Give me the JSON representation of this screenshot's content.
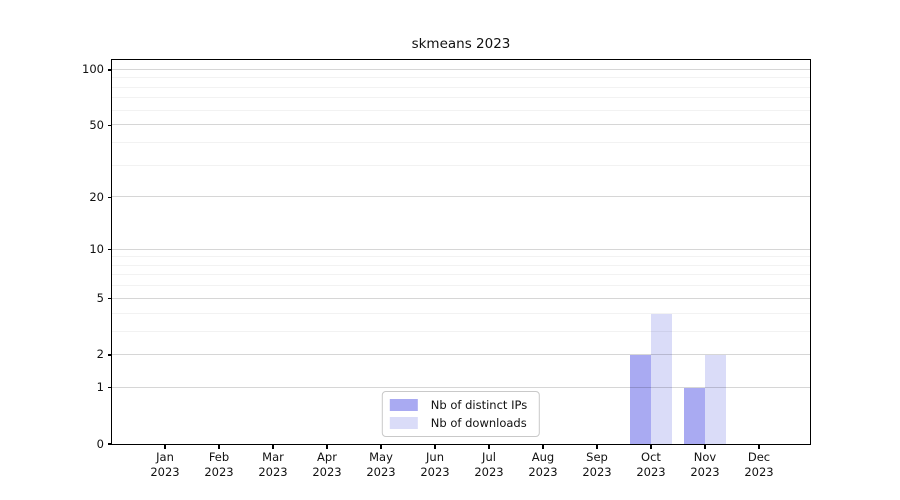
{
  "title": "skmeans 2023",
  "chart_data": {
    "type": "bar",
    "title": "skmeans 2023",
    "xlabel": "",
    "ylabel": "",
    "y_scale": "log1p",
    "ylim": [
      0,
      113
    ],
    "grid": "horizontal",
    "legend_position": "lower center",
    "x_categories": [
      "Jan 2023",
      "Feb 2023",
      "Mar 2023",
      "Apr 2023",
      "May 2023",
      "Jun 2023",
      "Jul 2023",
      "Aug 2023",
      "Sep 2023",
      "Oct 2023",
      "Nov 2023",
      "Dec 2023"
    ],
    "y_major_ticks": [
      0,
      1,
      2,
      5,
      10,
      20,
      50,
      100
    ],
    "y_minor_ticks": [
      3,
      4,
      6,
      7,
      8,
      9,
      30,
      40,
      60,
      70,
      80,
      90
    ],
    "series": [
      {
        "name": "Nb of distinct IPs",
        "color": "#a9aaf2",
        "values": [
          0,
          0,
          0,
          0,
          0,
          0,
          0,
          0,
          0,
          2,
          1,
          0
        ]
      },
      {
        "name": "Nb of downloads",
        "color": "#dadcf8",
        "values": [
          0,
          0,
          0,
          0,
          0,
          0,
          0,
          0,
          0,
          4,
          2,
          0
        ]
      }
    ]
  }
}
